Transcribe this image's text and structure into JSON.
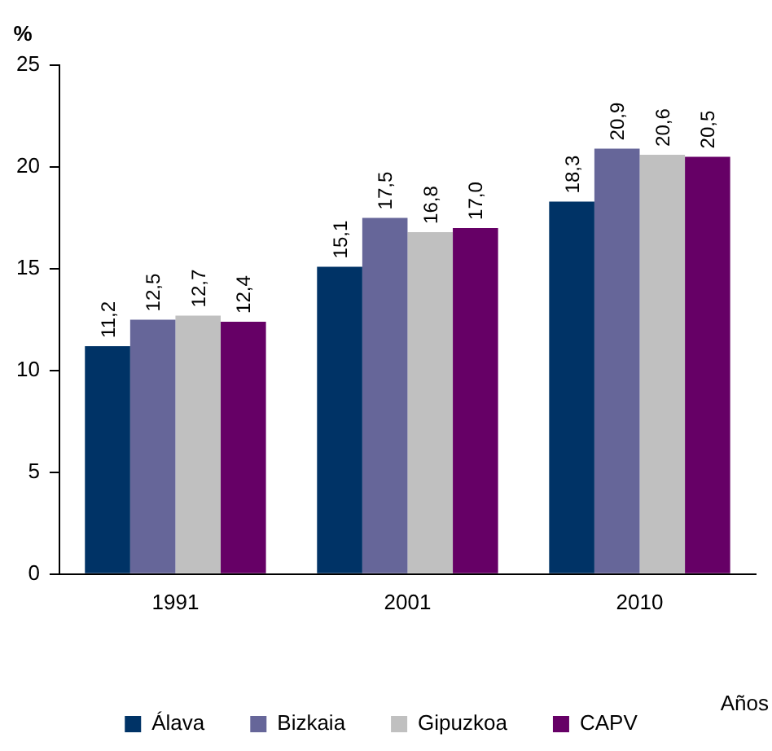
{
  "chart_data": {
    "type": "bar",
    "ylabel": "%",
    "xlabel": "Años",
    "categories": [
      "1991",
      "2001",
      "2010"
    ],
    "series": [
      {
        "name": "Álava",
        "color": "#003366",
        "values": [
          11.2,
          15.1,
          18.3
        ],
        "value_labels": [
          "11,2",
          "15,1",
          "18,3"
        ]
      },
      {
        "name": "Bizkaia",
        "color": "#666699",
        "values": [
          12.5,
          17.5,
          20.9
        ],
        "value_labels": [
          "12,5",
          "17,5",
          "20,9"
        ]
      },
      {
        "name": "Gipuzkoa",
        "color": "#c0c0c0",
        "values": [
          12.7,
          16.8,
          20.6
        ],
        "value_labels": [
          "12,7",
          "16,8",
          "20,6"
        ]
      },
      {
        "name": "CAPV",
        "color": "#660066",
        "values": [
          12.4,
          17.0,
          20.5
        ],
        "value_labels": [
          "12,4",
          "17,0",
          "20,5"
        ]
      }
    ],
    "ylim": [
      0,
      25
    ],
    "yticks": [
      0,
      5,
      10,
      15,
      20,
      25
    ],
    "grid": false,
    "legend": "bottom"
  }
}
